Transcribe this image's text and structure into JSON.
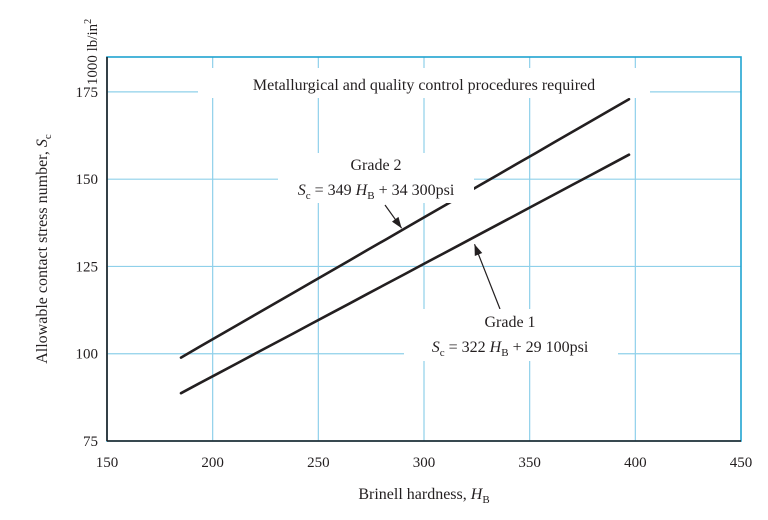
{
  "colors": {
    "frame": "#1fa3d0",
    "grid": "#8fd0ea",
    "line": "#231f20",
    "text": "#231f20",
    "background": "#ffffff"
  },
  "chart_data": {
    "type": "line",
    "title": "Metallurgical and quality control procedures required",
    "xlabel": "Brinell hardness, H_B",
    "xlabel_main": "Brinell hardness, ",
    "xlabel_var": "H",
    "xlabel_sub": "B",
    "ylabel": "Allowable contact stress number, S_c",
    "ylabel_main": "Allowable contact stress number, ",
    "ylabel_var": "S",
    "ylabel_sub": "c",
    "yunit": "1000 lb/in²",
    "yunit_main": "1000 lb/in",
    "yunit_sup": "2",
    "xlim": [
      150,
      450
    ],
    "ylim": [
      75,
      185
    ],
    "xticks": [
      150,
      200,
      250,
      300,
      350,
      400,
      450
    ],
    "yticks": [
      75,
      100,
      125,
      150,
      175
    ],
    "grid": true,
    "series": [
      {
        "name": "Grade 2",
        "equation": "S_c = 349 H_B + 34 300psi",
        "slope": 0.349,
        "intercept": 34.3,
        "x": [
          185,
          397
        ],
        "y": [
          98.9,
          172.9
        ]
      },
      {
        "name": "Grade 1",
        "equation": "S_c = 322 H_B + 29 100psi",
        "slope": 0.322,
        "intercept": 29.1,
        "x": [
          185,
          397
        ],
        "y": [
          88.7,
          157.0
        ]
      }
    ],
    "annotations": [
      {
        "series": "Grade 2",
        "label": "Grade 2",
        "eq_var": "S",
        "eq_var_sub": "c",
        "eq_mid": " = 349 ",
        "eq_hb": "H",
        "eq_hb_sub": "B",
        "eq_tail": " + 34 300psi"
      },
      {
        "series": "Grade 1",
        "label": "Grade 1",
        "eq_var": "S",
        "eq_var_sub": "c",
        "eq_mid": " = 322 ",
        "eq_hb": "H",
        "eq_hb_sub": "B",
        "eq_tail": " + 29 100psi"
      }
    ]
  }
}
